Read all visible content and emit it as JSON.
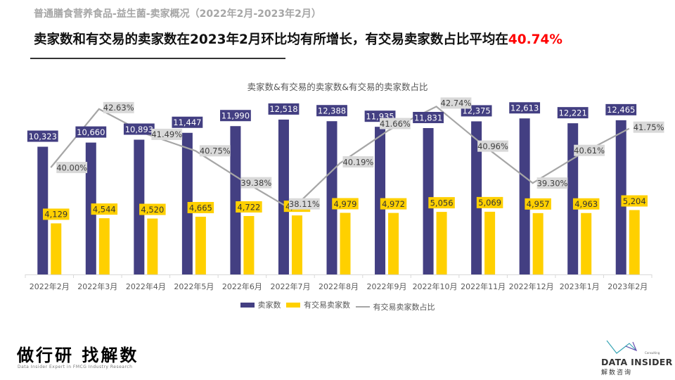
{
  "header": {
    "subtitle": "普通膳食营养食品-益生菌-卖家概况（2022年2月-2023年2月）",
    "headline_main": "卖家数和有交易的卖家数在2023年2月环比均有所增长，有交易卖家数占比平均在",
    "headline_highlight": "40.74%"
  },
  "colors": {
    "sellers": "#433f82",
    "trading_sellers": "#ffd000",
    "ratio_line": "#a6a6a6",
    "highlight": "#ff0000"
  },
  "chart_data": {
    "type": "bar",
    "title": "卖家数&有交易的卖家数&有交易的卖家数占比",
    "categories": [
      "2022年2月",
      "2022年3月",
      "2022年4月",
      "2022年5月",
      "2022年6月",
      "2022年7月",
      "2022年8月",
      "2022年9月",
      "2022年10月",
      "2022年11月",
      "2022年12月",
      "2023年1月",
      "2023年2月"
    ],
    "series": [
      {
        "name": "卖家数",
        "type": "bar",
        "values": [
          10323,
          10660,
          10893,
          11447,
          11990,
          12518,
          12388,
          11935,
          11831,
          12375,
          12613,
          12221,
          12465
        ],
        "labels": [
          "10,323",
          "10,660",
          "10,893",
          "11,447",
          "11,990",
          "12,518",
          "12,388",
          "11,935",
          "11,831",
          "12,375",
          "12,613",
          "12,221",
          "12,465"
        ]
      },
      {
        "name": "有交易卖家数",
        "type": "bar",
        "values": [
          4129,
          4544,
          4520,
          4665,
          4722,
          4771,
          4979,
          4972,
          5056,
          5069,
          4957,
          4963,
          5204
        ],
        "labels": [
          "4,129",
          "4,544",
          "4,520",
          "4,665",
          "4,722",
          "4,771",
          "4,979",
          "4,972",
          "5,056",
          "5,069",
          "4,957",
          "4,963",
          "5,204"
        ]
      },
      {
        "name": "有交易卖家数占比",
        "type": "line",
        "values": [
          40.0,
          42.63,
          41.49,
          40.75,
          39.38,
          38.11,
          40.19,
          41.66,
          42.74,
          40.96,
          39.3,
          40.61,
          41.75
        ],
        "labels": [
          "40.00%",
          "42.63%",
          "41.49%",
          "40.75%",
          "39.38%",
          "38.11%",
          "40.19%",
          "41.66%",
          "42.74%",
          "40.96%",
          "39.30%",
          "40.61%",
          "41.75%"
        ]
      }
    ],
    "xlabel": "",
    "ylabel": "",
    "grid": false,
    "legend_position": "bottom"
  },
  "footer": {
    "brand_cn": "做行研 找解数",
    "brand_en": "Data Insider Expert in FMCG Industry Research",
    "logo_en": "DATA INSIDER",
    "logo_cn": "解数咨询",
    "logo_small": "Consulting"
  }
}
